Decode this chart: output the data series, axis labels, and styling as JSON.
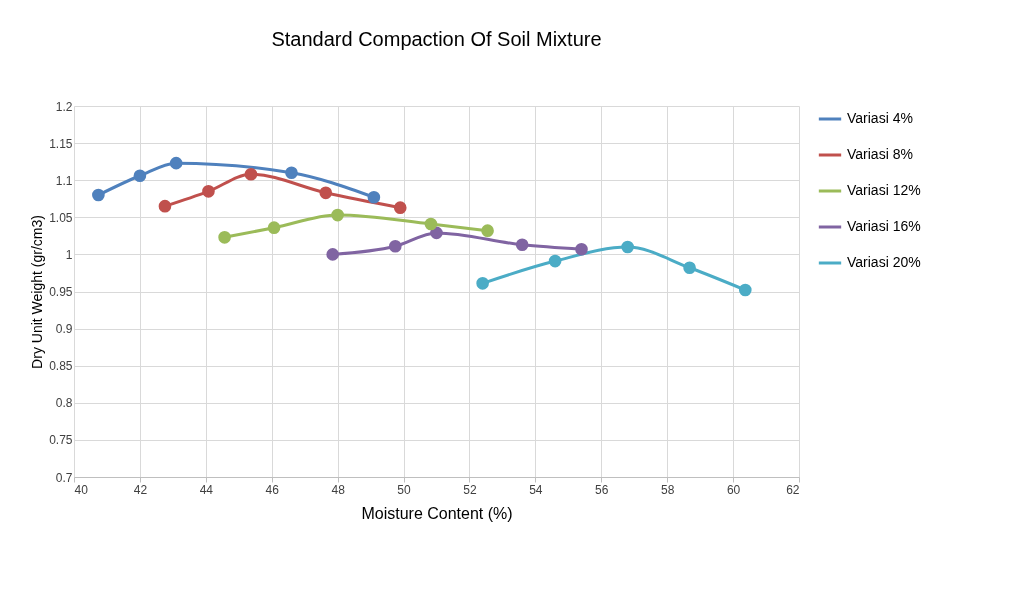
{
  "chart_data": {
    "type": "line",
    "title": "Standard Compaction Of Soil Mixture",
    "xlabel": "Moisture Content (%)",
    "ylabel": "Dry Unit Weight (gr/cm3)",
    "xlim": [
      40,
      62
    ],
    "xticks": [
      40,
      42,
      44,
      46,
      48,
      50,
      52,
      54,
      56,
      58,
      60,
      62
    ],
    "ylim": [
      0.7,
      1.2
    ],
    "yticks": [
      0.7,
      0.75,
      0.8,
      0.85,
      0.9,
      0.95,
      1,
      1.05,
      1.1,
      1.15,
      1.2
    ],
    "grid": true,
    "legend": "right",
    "marker": "circle",
    "line_style": "solid",
    "series": [
      {
        "name": "Variasi 4%",
        "color": "#4f81bd",
        "x": [
          40.74,
          42.0,
          43.1,
          46.6,
          49.1
        ],
        "values": [
          1.08,
          1.106,
          1.123,
          1.11,
          1.077
        ]
      },
      {
        "name": "Variasi 8%",
        "color": "#c0504d",
        "x": [
          42.76,
          44.08,
          45.37,
          47.64,
          49.9
        ],
        "values": [
          1.065,
          1.085,
          1.108,
          1.083,
          1.063
        ]
      },
      {
        "name": "Variasi 12%",
        "color": "#9bbb59",
        "x": [
          44.57,
          46.07,
          48.0,
          50.83,
          52.55
        ],
        "values": [
          1.023,
          1.036,
          1.053,
          1.041,
          1.032
        ]
      },
      {
        "name": "Variasi 16%",
        "color": "#8064a2",
        "x": [
          47.85,
          49.75,
          51.0,
          53.6,
          55.4
        ],
        "values": [
          1.0,
          1.011,
          1.029,
          1.013,
          1.007
        ]
      },
      {
        "name": "Variasi 20%",
        "color": "#4bacc6",
        "x": [
          52.4,
          54.6,
          56.8,
          58.68,
          60.37
        ],
        "values": [
          0.961,
          0.991,
          1.01,
          0.982,
          0.952
        ]
      }
    ]
  }
}
